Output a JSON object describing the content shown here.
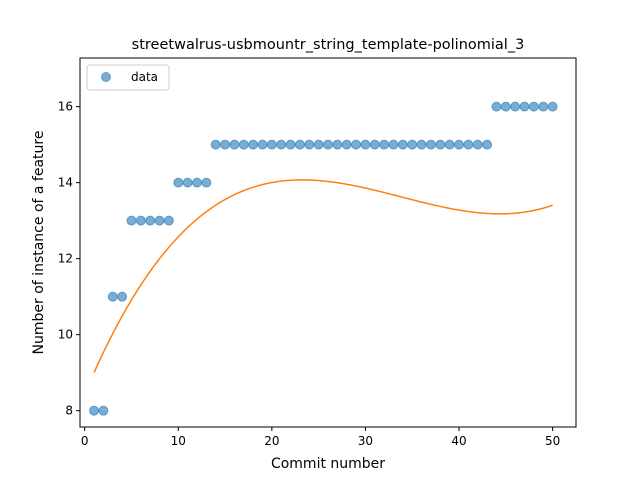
{
  "chart_data": {
    "type": "scatter",
    "title": "streetwalrus-usbmountr_string_template-polinomial_3",
    "xlabel": "Commit number",
    "ylabel": "Number of instance of a feature",
    "xlim": [
      -0.5,
      52.5
    ],
    "ylim": [
      7.57,
      17.28
    ],
    "xticks": [
      0,
      10,
      20,
      30,
      40,
      50
    ],
    "yticks": [
      8,
      10,
      12,
      14,
      16
    ],
    "grid": false,
    "legend": {
      "position": "top-left",
      "entries": [
        "data"
      ]
    },
    "series": [
      {
        "name": "data",
        "kind": "scatter",
        "color": "#1f77b4",
        "x": [
          1,
          2,
          3,
          4,
          5,
          6,
          7,
          8,
          9,
          10,
          11,
          12,
          13,
          14,
          15,
          16,
          17,
          18,
          19,
          20,
          21,
          22,
          23,
          24,
          25,
          26,
          27,
          28,
          29,
          30,
          31,
          32,
          33,
          34,
          35,
          36,
          37,
          38,
          39,
          40,
          41,
          42,
          43,
          44,
          45,
          46,
          47,
          48,
          49,
          50
        ],
        "y": [
          8,
          8,
          11,
          11,
          13,
          13,
          13,
          13,
          13,
          14,
          14,
          14,
          14,
          15,
          15,
          15,
          15,
          15,
          15,
          15,
          15,
          15,
          15,
          15,
          15,
          15,
          15,
          15,
          15,
          15,
          15,
          15,
          15,
          15,
          15,
          15,
          15,
          15,
          15,
          15,
          15,
          15,
          15,
          16,
          16,
          16,
          16,
          16,
          16,
          16
        ]
      },
      {
        "kind": "line",
        "color": "#ff7f0e",
        "fit_coefficients": [
          9.0,
          0.55,
          -0.0187,
          0.00019
        ],
        "x_range": [
          1,
          50
        ]
      }
    ]
  }
}
